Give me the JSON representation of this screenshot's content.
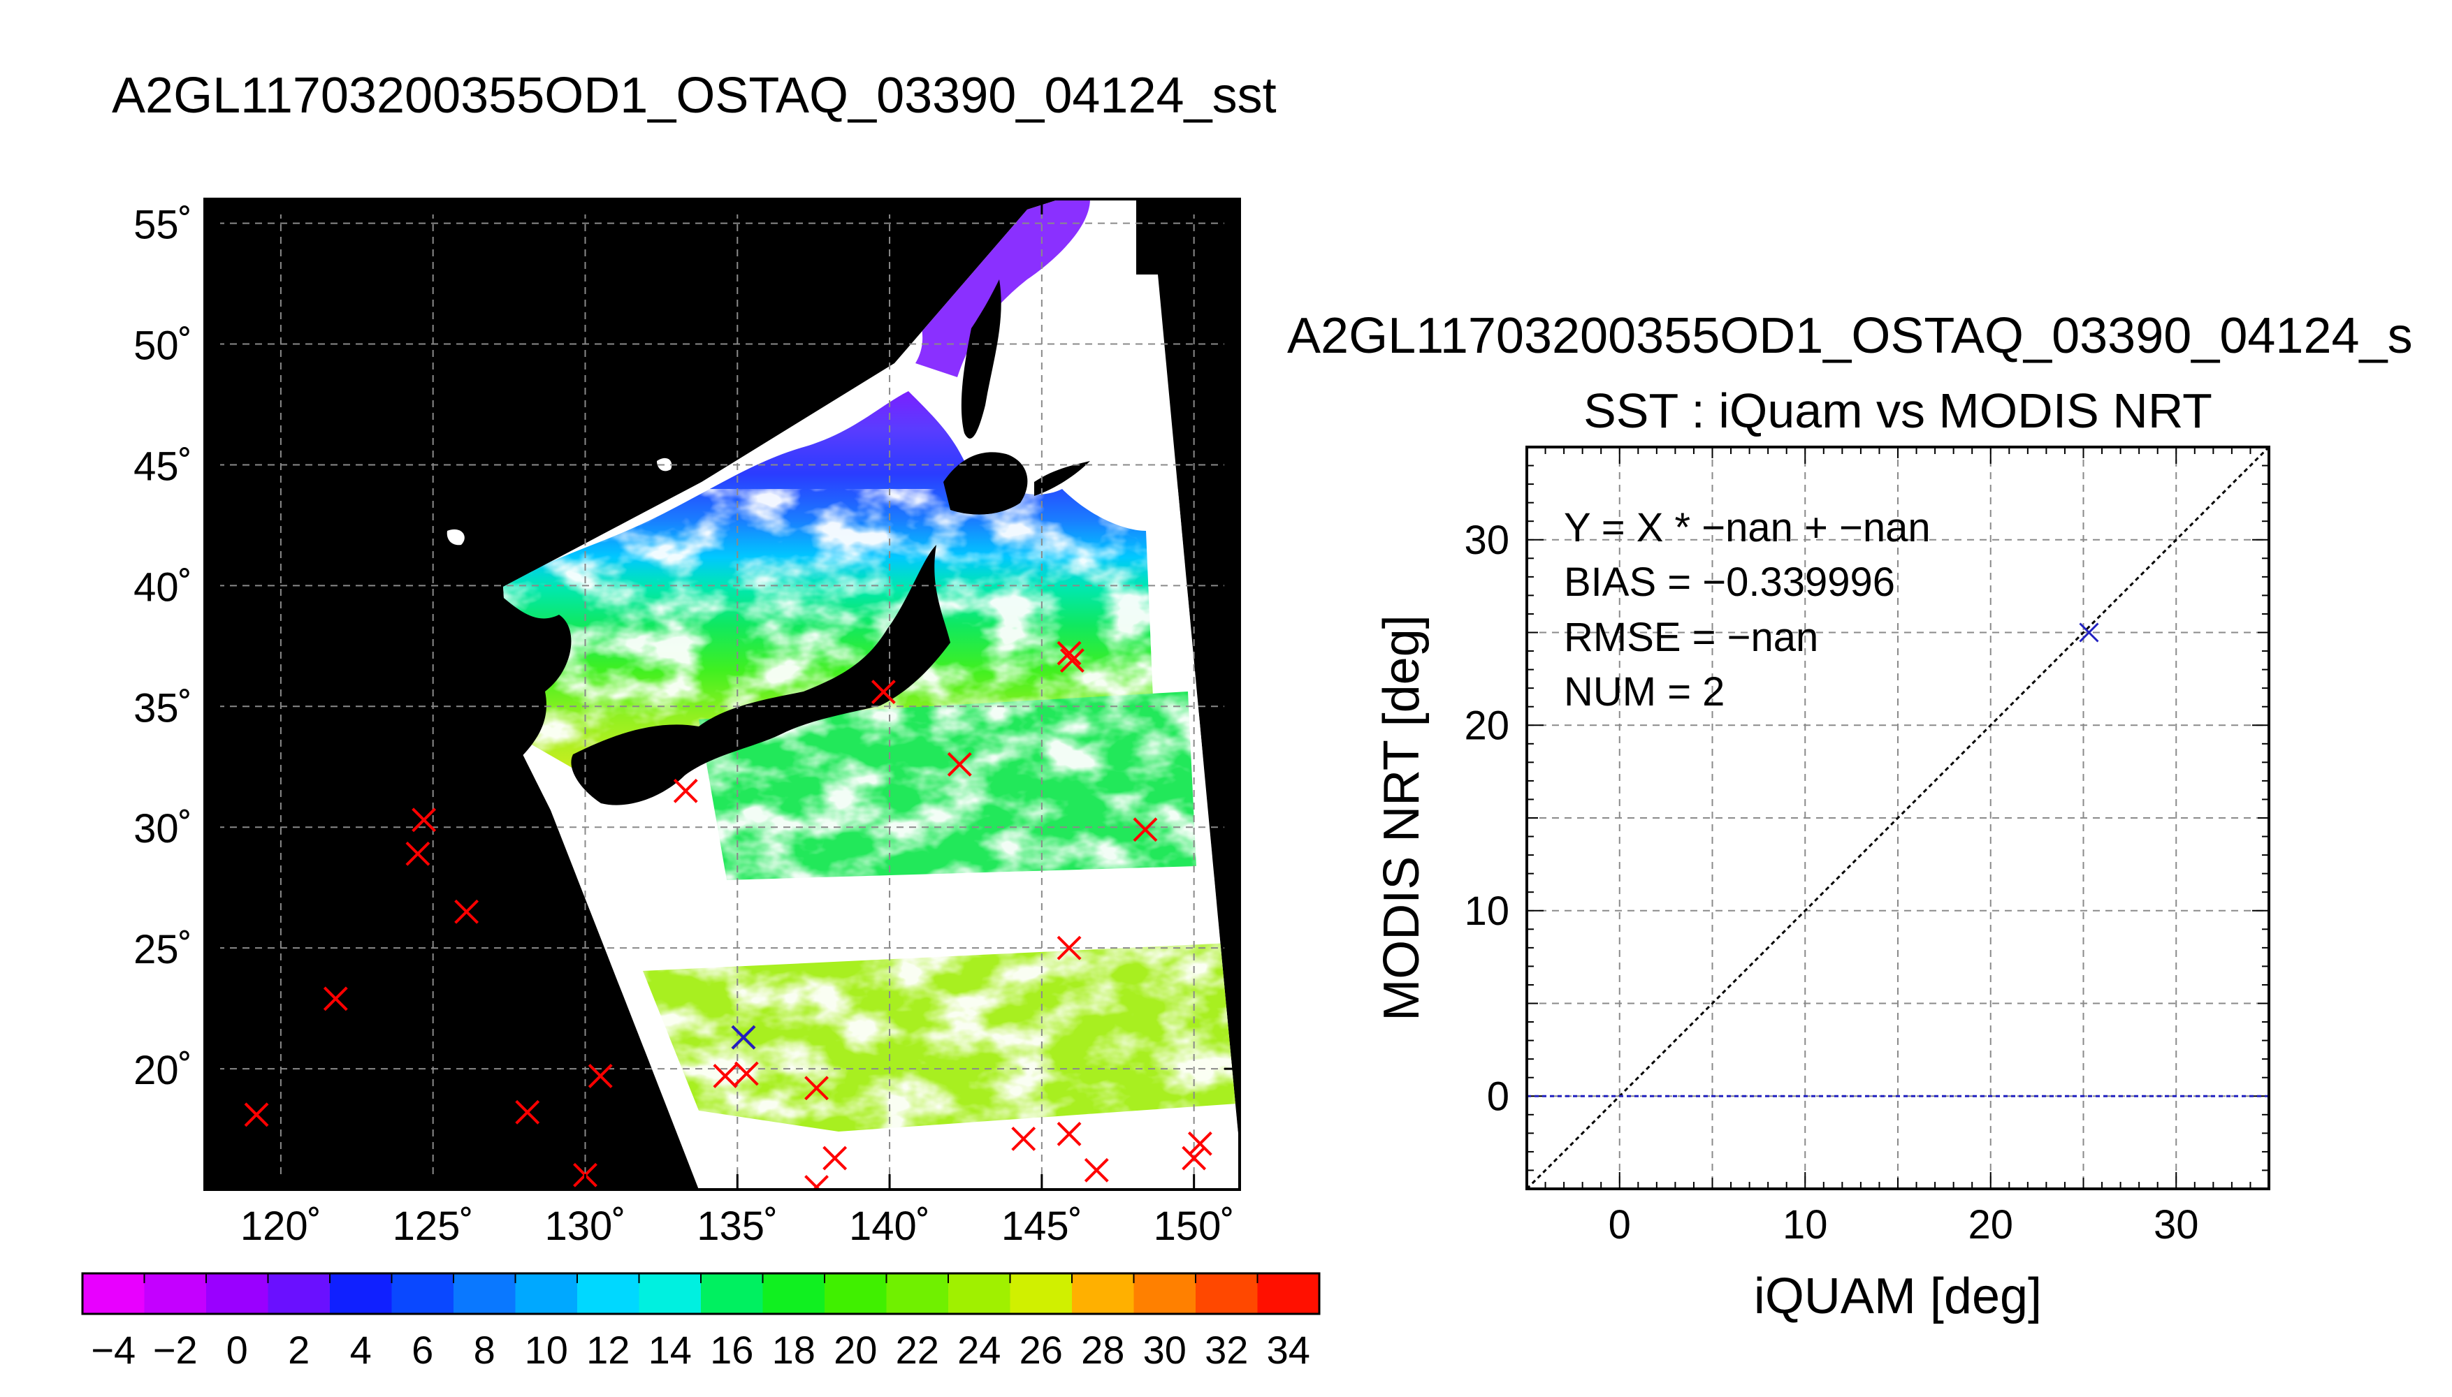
{
  "map_panel": {
    "title": "A2GL11703200355OD1_OSTAQ_03390_04124_sst",
    "lat_ticks": [
      "55˚",
      "50˚",
      "45˚",
      "40˚",
      "35˚",
      "30˚",
      "25˚",
      "20˚"
    ],
    "lon_ticks": [
      "120˚",
      "125˚",
      "130˚",
      "135˚",
      "140˚",
      "145˚",
      "150˚"
    ],
    "colorbar_labels": [
      "−4",
      "−2",
      "0",
      "2",
      "4",
      "6",
      "8",
      "10",
      "12",
      "14",
      "16",
      "18",
      "20",
      "22",
      "24",
      "26",
      "28",
      "30",
      "32",
      "34"
    ],
    "colors": {
      "land_background": "#000000",
      "no_data": "#ffffff",
      "marker_red": "#ff0000",
      "marker_blue": "#2020c0"
    }
  },
  "chart_data": [
    {
      "type": "heatmap",
      "title": "A2GL11703200355OD1_OSTAQ_03390_04124_sst",
      "xlim": [
        117.5,
        151.5
      ],
      "ylim": [
        15,
        56
      ],
      "x_ticks": [
        120,
        125,
        130,
        135,
        140,
        145,
        150
      ],
      "y_ticks": [
        20,
        25,
        30,
        35,
        40,
        45,
        50,
        55
      ],
      "colorbar": {
        "min": -5,
        "max": 35,
        "step": 2
      },
      "red_markers": [
        {
          "lon": 119.2,
          "lat": 18.1
        },
        {
          "lon": 121.8,
          "lat": 22.9
        },
        {
          "lon": 124.5,
          "lat": 28.9
        },
        {
          "lon": 124.7,
          "lat": 30.3
        },
        {
          "lon": 126.1,
          "lat": 26.5
        },
        {
          "lon": 128.1,
          "lat": 18.2
        },
        {
          "lon": 130.0,
          "lat": 15.6
        },
        {
          "lon": 130.5,
          "lat": 19.7
        },
        {
          "lon": 133.3,
          "lat": 31.5
        },
        {
          "lon": 134.6,
          "lat": 19.7
        },
        {
          "lon": 135.2,
          "lat": 21.3
        },
        {
          "lon": 135.3,
          "lat": 19.8
        },
        {
          "lon": 137.6,
          "lat": 19.2
        },
        {
          "lon": 137.6,
          "lat": 15.1
        },
        {
          "lon": 138.2,
          "lat": 16.3
        },
        {
          "lon": 139.8,
          "lat": 35.6
        },
        {
          "lon": 142.3,
          "lat": 32.6
        },
        {
          "lon": 144.4,
          "lat": 17.1
        },
        {
          "lon": 145.9,
          "lat": 17.3
        },
        {
          "lon": 145.9,
          "lat": 37.2
        },
        {
          "lon": 146.0,
          "lat": 36.9
        },
        {
          "lon": 145.9,
          "lat": 25.0
        },
        {
          "lon": 146.8,
          "lat": 15.8
        },
        {
          "lon": 148.4,
          "lat": 29.9
        },
        {
          "lon": 150.0,
          "lat": 16.3
        },
        {
          "lon": 150.2,
          "lat": 16.9
        }
      ],
      "blue_markers": [
        {
          "lon": 135.2,
          "lat": 21.3
        }
      ]
    },
    {
      "type": "scatter",
      "header": "A2GL11703200355OD1_OSTAQ_03390_04124_s",
      "title": "SST : iQuam vs MODIS NRT",
      "xlabel": "iQUAM [deg]",
      "ylabel": "MODIS NRT [deg]",
      "xlim": [
        -5,
        35
      ],
      "ylim": [
        -5,
        35
      ],
      "x_ticks": [
        0,
        10,
        20,
        30
      ],
      "y_ticks": [
        0,
        10,
        20,
        30
      ],
      "grid": true,
      "stats": [
        "Y = X * −nan + −nan",
        "BIAS = −0.339996",
        "RMSE = −nan",
        "NUM = 2"
      ],
      "points": [
        {
          "x": 25.3,
          "y": 25.0
        }
      ],
      "reference_lines": [
        {
          "name": "1:1",
          "slope": 1,
          "intercept": 0,
          "color": "#000000"
        },
        {
          "name": "zero",
          "y": 0,
          "color": "#2020c0"
        }
      ]
    }
  ]
}
